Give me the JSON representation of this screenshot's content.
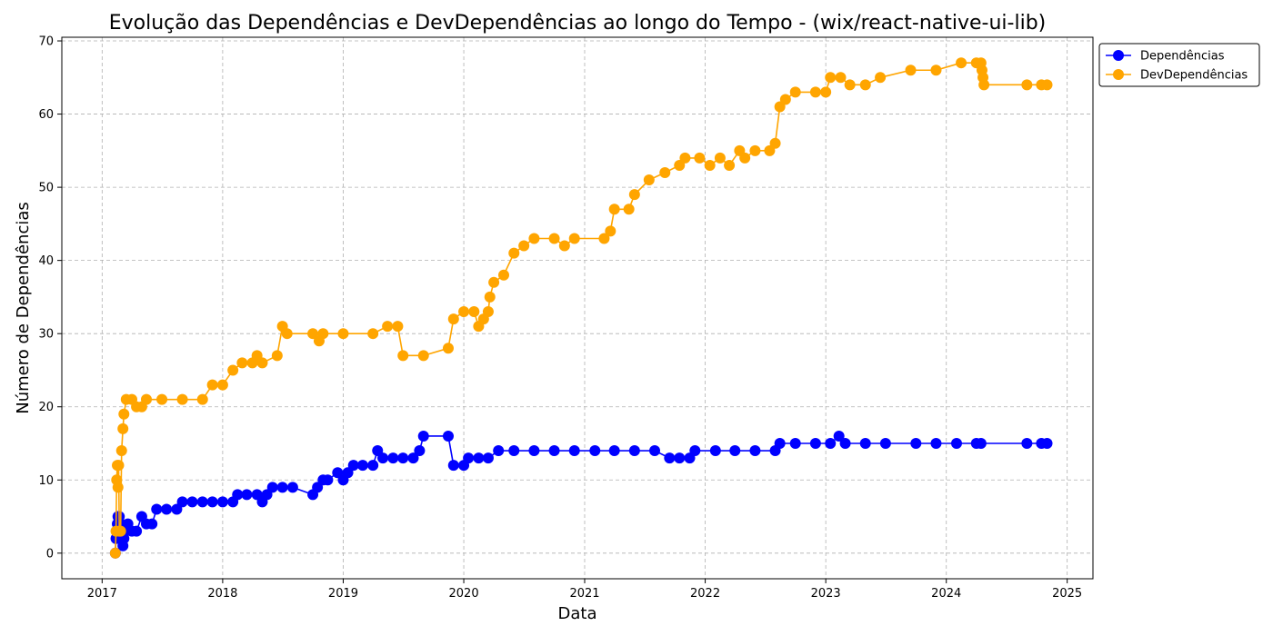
{
  "chart_data": {
    "type": "line",
    "title": "Evolução das Dependências e DevDependências ao longo do Tempo - (wix/react-native-ui-lib)",
    "xlabel": "Data",
    "ylabel": "Número de Dependências",
    "xlim": [
      "2016-09-01",
      "2025-03-20"
    ],
    "ylim": [
      -3.5,
      70.5
    ],
    "xticks": [
      "2017",
      "2018",
      "2019",
      "2020",
      "2021",
      "2022",
      "2023",
      "2024",
      "2025"
    ],
    "yticks": [
      0,
      10,
      20,
      30,
      40,
      50,
      60,
      70
    ],
    "grid": true,
    "legend_position": "upper-right-outside",
    "series": [
      {
        "name": "Dependências",
        "color": "#0000ff",
        "points": [
          [
            "2017-02-10",
            0
          ],
          [
            "2017-02-12",
            2
          ],
          [
            "2017-02-14",
            3
          ],
          [
            "2017-02-16",
            4
          ],
          [
            "2017-02-18",
            5
          ],
          [
            "2017-02-22",
            5
          ],
          [
            "2017-02-26",
            4
          ],
          [
            "2017-03-02",
            2
          ],
          [
            "2017-03-05",
            1
          ],
          [
            "2017-03-08",
            2
          ],
          [
            "2017-03-12",
            3
          ],
          [
            "2017-03-20",
            4
          ],
          [
            "2017-04-01",
            3
          ],
          [
            "2017-04-15",
            3
          ],
          [
            "2017-05-01",
            5
          ],
          [
            "2017-05-15",
            4
          ],
          [
            "2017-06-01",
            4
          ],
          [
            "2017-06-15",
            6
          ],
          [
            "2017-07-15",
            6
          ],
          [
            "2017-08-15",
            6
          ],
          [
            "2017-09-01",
            7
          ],
          [
            "2017-10-01",
            7
          ],
          [
            "2017-11-01",
            7
          ],
          [
            "2017-12-01",
            7
          ],
          [
            "2018-01-01",
            7
          ],
          [
            "2018-02-01",
            7
          ],
          [
            "2018-02-15",
            8
          ],
          [
            "2018-03-15",
            8
          ],
          [
            "2018-04-15",
            8
          ],
          [
            "2018-05-01",
            7
          ],
          [
            "2018-05-15",
            8
          ],
          [
            "2018-06-01",
            9
          ],
          [
            "2018-07-01",
            9
          ],
          [
            "2018-08-01",
            9
          ],
          [
            "2018-10-01",
            8
          ],
          [
            "2018-10-15",
            9
          ],
          [
            "2018-11-01",
            10
          ],
          [
            "2018-11-15",
            10
          ],
          [
            "2018-12-15",
            11
          ],
          [
            "2019-01-01",
            10
          ],
          [
            "2019-01-15",
            11
          ],
          [
            "2019-02-01",
            12
          ],
          [
            "2019-03-01",
            12
          ],
          [
            "2019-04-01",
            12
          ],
          [
            "2019-04-15",
            14
          ],
          [
            "2019-05-01",
            13
          ],
          [
            "2019-06-01",
            13
          ],
          [
            "2019-07-01",
            13
          ],
          [
            "2019-08-01",
            13
          ],
          [
            "2019-08-20",
            14
          ],
          [
            "2019-09-01",
            16
          ],
          [
            "2019-11-15",
            16
          ],
          [
            "2019-12-01",
            12
          ],
          [
            "2020-01-01",
            12
          ],
          [
            "2020-01-15",
            13
          ],
          [
            "2020-02-15",
            13
          ],
          [
            "2020-03-15",
            13
          ],
          [
            "2020-04-15",
            14
          ],
          [
            "2020-06-01",
            14
          ],
          [
            "2020-08-01",
            14
          ],
          [
            "2020-10-01",
            14
          ],
          [
            "2020-12-01",
            14
          ],
          [
            "2021-02-01",
            14
          ],
          [
            "2021-04-01",
            14
          ],
          [
            "2021-06-01",
            14
          ],
          [
            "2021-08-01",
            14
          ],
          [
            "2021-09-15",
            13
          ],
          [
            "2021-10-15",
            13
          ],
          [
            "2021-11-15",
            13
          ],
          [
            "2021-12-01",
            14
          ],
          [
            "2022-02-01",
            14
          ],
          [
            "2022-04-01",
            14
          ],
          [
            "2022-06-01",
            14
          ],
          [
            "2022-08-01",
            14
          ],
          [
            "2022-08-15",
            15
          ],
          [
            "2022-10-01",
            15
          ],
          [
            "2022-12-01",
            15
          ],
          [
            "2023-01-15",
            15
          ],
          [
            "2023-02-10",
            16
          ],
          [
            "2023-03-01",
            15
          ],
          [
            "2023-05-01",
            15
          ],
          [
            "2023-07-01",
            15
          ],
          [
            "2023-10-01",
            15
          ],
          [
            "2023-12-01",
            15
          ],
          [
            "2024-02-01",
            15
          ],
          [
            "2024-04-01",
            15
          ],
          [
            "2024-04-15",
            15
          ],
          [
            "2024-09-01",
            15
          ],
          [
            "2024-10-15",
            15
          ],
          [
            "2024-11-01",
            15
          ]
        ]
      },
      {
        "name": "DevDependências",
        "color": "#ffa500",
        "points": [
          [
            "2017-02-10",
            0
          ],
          [
            "2017-02-12",
            3
          ],
          [
            "2017-02-14",
            10
          ],
          [
            "2017-02-16",
            12
          ],
          [
            "2017-02-18",
            9
          ],
          [
            "2017-02-20",
            12
          ],
          [
            "2017-02-22",
            3
          ],
          [
            "2017-02-26",
            3
          ],
          [
            "2017-03-01",
            14
          ],
          [
            "2017-03-05",
            17
          ],
          [
            "2017-03-08",
            19
          ],
          [
            "2017-03-15",
            21
          ],
          [
            "2017-04-01",
            21
          ],
          [
            "2017-04-15",
            20
          ],
          [
            "2017-05-01",
            20
          ],
          [
            "2017-05-15",
            21
          ],
          [
            "2017-07-01",
            21
          ],
          [
            "2017-09-01",
            21
          ],
          [
            "2017-11-01",
            21
          ],
          [
            "2017-12-01",
            23
          ],
          [
            "2018-01-01",
            23
          ],
          [
            "2018-02-01",
            25
          ],
          [
            "2018-03-01",
            26
          ],
          [
            "2018-04-01",
            26
          ],
          [
            "2018-04-15",
            27
          ],
          [
            "2018-05-01",
            26
          ],
          [
            "2018-06-15",
            27
          ],
          [
            "2018-07-01",
            31
          ],
          [
            "2018-07-15",
            30
          ],
          [
            "2018-10-01",
            30
          ],
          [
            "2018-10-20",
            29
          ],
          [
            "2018-11-01",
            30
          ],
          [
            "2019-01-01",
            30
          ],
          [
            "2019-04-01",
            30
          ],
          [
            "2019-05-15",
            31
          ],
          [
            "2019-06-15",
            31
          ],
          [
            "2019-07-01",
            27
          ],
          [
            "2019-09-01",
            27
          ],
          [
            "2019-11-15",
            28
          ],
          [
            "2019-12-01",
            32
          ],
          [
            "2020-01-01",
            33
          ],
          [
            "2020-02-01",
            33
          ],
          [
            "2020-02-15",
            31
          ],
          [
            "2020-03-01",
            32
          ],
          [
            "2020-03-15",
            33
          ],
          [
            "2020-03-20",
            35
          ],
          [
            "2020-04-01",
            37
          ],
          [
            "2020-05-01",
            38
          ],
          [
            "2020-06-01",
            41
          ],
          [
            "2020-07-01",
            42
          ],
          [
            "2020-08-01",
            43
          ],
          [
            "2020-10-01",
            43
          ],
          [
            "2020-11-01",
            42
          ],
          [
            "2020-12-01",
            43
          ],
          [
            "2021-03-01",
            43
          ],
          [
            "2021-03-20",
            44
          ],
          [
            "2021-04-01",
            47
          ],
          [
            "2021-05-15",
            47
          ],
          [
            "2021-06-01",
            49
          ],
          [
            "2021-07-15",
            51
          ],
          [
            "2021-09-01",
            52
          ],
          [
            "2021-10-15",
            53
          ],
          [
            "2021-11-01",
            54
          ],
          [
            "2021-12-15",
            54
          ],
          [
            "2022-01-15",
            53
          ],
          [
            "2022-02-15",
            54
          ],
          [
            "2022-03-15",
            53
          ],
          [
            "2022-04-15",
            55
          ],
          [
            "2022-05-01",
            54
          ],
          [
            "2022-06-01",
            55
          ],
          [
            "2022-07-15",
            55
          ],
          [
            "2022-08-01",
            56
          ],
          [
            "2022-08-15",
            61
          ],
          [
            "2022-09-01",
            62
          ],
          [
            "2022-10-01",
            63
          ],
          [
            "2022-12-01",
            63
          ],
          [
            "2023-01-01",
            63
          ],
          [
            "2023-01-15",
            65
          ],
          [
            "2023-02-15",
            65
          ],
          [
            "2023-03-15",
            64
          ],
          [
            "2023-05-01",
            64
          ],
          [
            "2023-06-15",
            65
          ],
          [
            "2023-09-15",
            66
          ],
          [
            "2023-12-01",
            66
          ],
          [
            "2024-02-15",
            67
          ],
          [
            "2024-04-01",
            67
          ],
          [
            "2024-04-15",
            67
          ],
          [
            "2024-04-18",
            66
          ],
          [
            "2024-04-21",
            65
          ],
          [
            "2024-04-24",
            64
          ],
          [
            "2024-09-01",
            64
          ],
          [
            "2024-10-15",
            64
          ],
          [
            "2024-11-01",
            64
          ]
        ]
      }
    ]
  }
}
